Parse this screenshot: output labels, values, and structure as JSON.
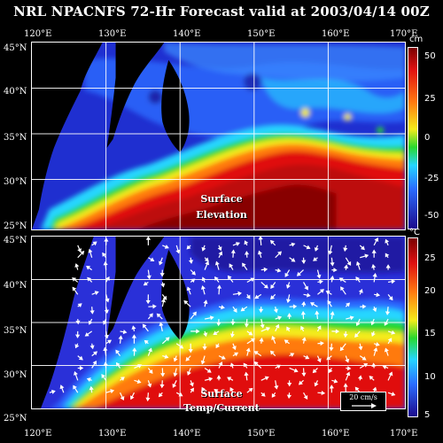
{
  "title": "NRL NPACNFS 72-Hr Forecast valid at 2003/04/14 00Z",
  "lon_labels": [
    "120°E",
    "130°E",
    "140°E",
    "150°E",
    "160°E",
    "170°E"
  ],
  "lat_labels": [
    "45°N",
    "40°N",
    "35°N",
    "30°N",
    "25°N"
  ],
  "top_panel": {
    "field_label_1": "Surface",
    "field_label_2": "Elevation",
    "colorbar_unit": "cm",
    "colorbar_ticks": [
      "50",
      "25",
      "0",
      "-25",
      "-50"
    ]
  },
  "bottom_panel": {
    "field_label_1": "Surface",
    "field_label_2": "Temp/Current",
    "colorbar_unit": "°C",
    "colorbar_ticks": [
      "25",
      "20",
      "15",
      "10",
      "5"
    ],
    "vector_legend": "20 cm/s"
  },
  "colors": {
    "land": "#000000",
    "deep": "#1c0a8c",
    "mid": "#2a6cff",
    "cyan": "#25d6ff",
    "green": "#28d82e",
    "yellow": "#f4ec1a",
    "orange": "#ff7a10",
    "red": "#e01010",
    "darkred": "#7a0000"
  }
}
